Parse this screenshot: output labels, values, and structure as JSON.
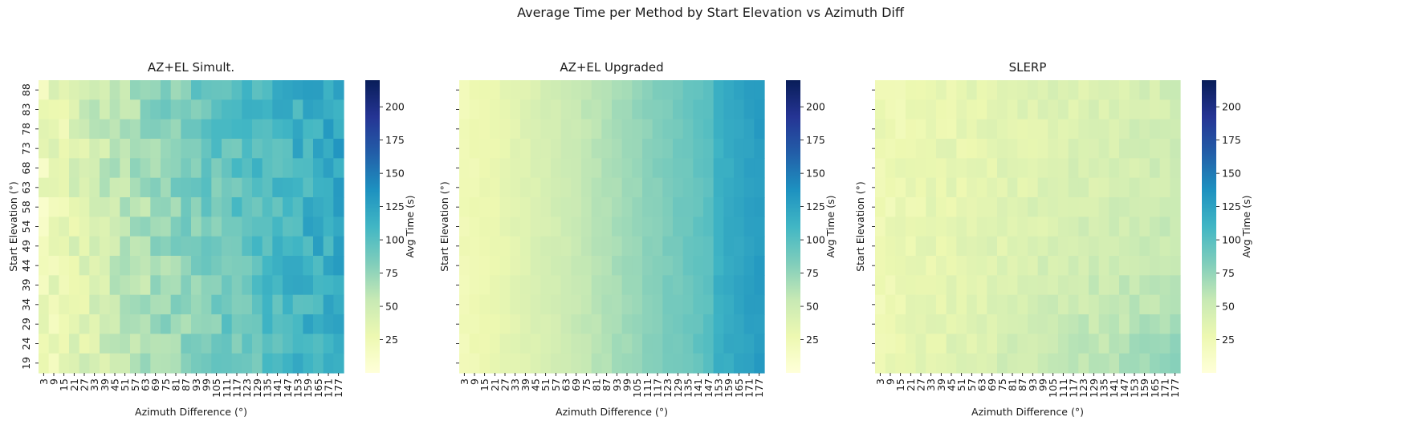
{
  "figure": {
    "title": "Average Time per Method by Start Elevation vs Azimuth Diff"
  },
  "chart_data": [
    {
      "type": "heatmap",
      "title": "AZ+EL Simult.",
      "xlabel": "Azimuth Difference (°)",
      "ylabel": "Start Elevation (°)",
      "colorbar_label": "Avg Time (s)",
      "colorbar_ticks": [
        25,
        50,
        75,
        100,
        125,
        150,
        175,
        200
      ],
      "vmin": 0,
      "vmax": 220,
      "colormap": "YlGnBu",
      "x": [
        3,
        9,
        15,
        21,
        27,
        33,
        39,
        45,
        51,
        57,
        63,
        69,
        75,
        81,
        87,
        93,
        99,
        105,
        111,
        117,
        123,
        129,
        135,
        141,
        147,
        153,
        159,
        165,
        171,
        177
      ],
      "y": [
        88,
        83,
        78,
        73,
        68,
        63,
        58,
        54,
        49,
        44,
        39,
        34,
        29,
        24,
        19
      ],
      "ytick_labels_shown": true,
      "model": "simult"
    },
    {
      "type": "heatmap",
      "title": "AZ+EL Upgraded",
      "xlabel": "Azimuth Difference (°)",
      "ylabel": "Start Elevation (°)",
      "colorbar_label": "Avg Time (s)",
      "colorbar_ticks": [
        25,
        50,
        75,
        100,
        125,
        150,
        175,
        200
      ],
      "vmin": 0,
      "vmax": 220,
      "colormap": "YlGnBu",
      "x": [
        3,
        9,
        15,
        21,
        27,
        33,
        39,
        45,
        51,
        57,
        63,
        69,
        75,
        81,
        87,
        93,
        99,
        105,
        111,
        117,
        123,
        129,
        135,
        141,
        147,
        153,
        159,
        165,
        171,
        177
      ],
      "y": [
        88,
        83,
        78,
        73,
        68,
        63,
        58,
        54,
        49,
        44,
        39,
        34,
        29,
        24,
        19
      ],
      "ytick_labels_shown": false,
      "model": "upgraded"
    },
    {
      "type": "heatmap",
      "title": "SLERP",
      "xlabel": "Azimuth Difference (°)",
      "ylabel": "Start Elevation (°)",
      "colorbar_label": "Avg Time (s)",
      "colorbar_ticks": [
        25,
        50,
        75,
        100,
        125,
        150,
        175,
        200
      ],
      "vmin": 0,
      "vmax": 220,
      "colormap": "YlGnBu",
      "x": [
        3,
        9,
        15,
        21,
        27,
        33,
        39,
        45,
        51,
        57,
        63,
        69,
        75,
        81,
        87,
        93,
        99,
        105,
        111,
        117,
        123,
        129,
        135,
        141,
        147,
        153,
        159,
        165,
        171,
        177
      ],
      "y": [
        88,
        83,
        78,
        73,
        68,
        63,
        58,
        54,
        49,
        44,
        39,
        34,
        29,
        24,
        19
      ],
      "ytick_labels_shown": false,
      "model": "slerp"
    }
  ]
}
